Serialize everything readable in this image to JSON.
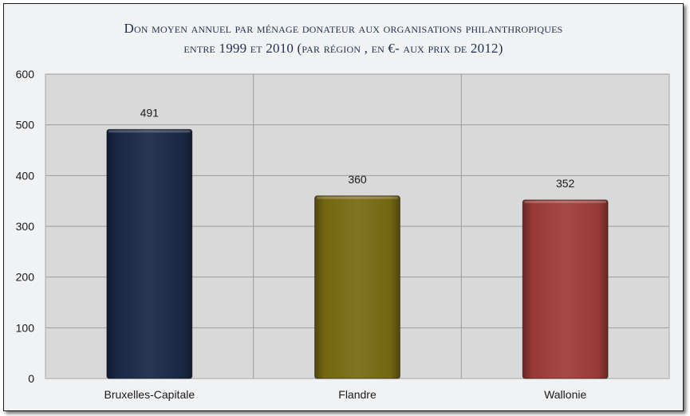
{
  "chart_data": {
    "type": "bar",
    "title_line1": "Don moyen annuel par ménage donateur aux organisations philanthropiques",
    "title_line2": "entre 1999 et 2010 (par région , en €- aux prix de 2012)",
    "categories": [
      "Bruxelles-Capitale",
      "Flandre",
      "Wallonie"
    ],
    "values": [
      491,
      360,
      352
    ],
    "colors": [
      "#1b2a49",
      "#7a6c13",
      "#a13d3a"
    ],
    "ylim": [
      0,
      600
    ],
    "yticks": [
      "0",
      "100",
      "200",
      "300",
      "400",
      "500",
      "600"
    ],
    "grid": true,
    "plot_background": "#d9d9d9",
    "legend": "none"
  }
}
